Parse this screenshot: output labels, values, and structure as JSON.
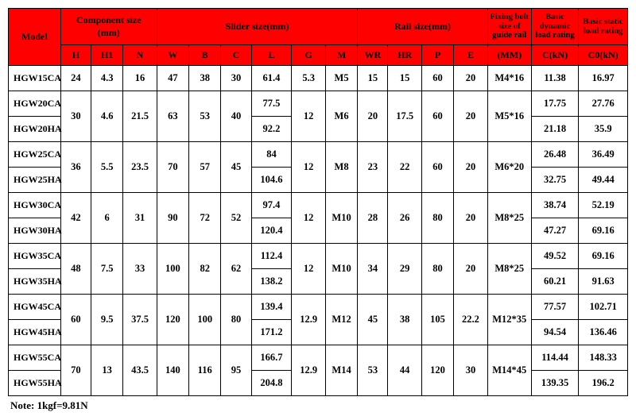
{
  "headers": {
    "model": "Model",
    "component": "Component size\n(mm)",
    "slider": "Slider size(mm)",
    "rail": "Rail size(mm)",
    "bolt": "Fixing bolt size of guide rail",
    "dynamic": "Basic dynamic load rating",
    "static": "Basic static load rating",
    "H": "H",
    "H1": "H1",
    "N": "N",
    "W": "W",
    "B": "B",
    "C": "C",
    "L": "L",
    "G": "G",
    "M": "M",
    "WR": "WR",
    "HR": "HR",
    "P": "P",
    "E": "E",
    "MM": "(MM)",
    "CkN": "C(kN)",
    "C0kN": "C0(kN)"
  },
  "rows": [
    {
      "model": "HGW15CA",
      "H": "24",
      "H1": "4.3",
      "N": "16",
      "W": "47",
      "B": "38",
      "C": "30",
      "L": "61.4",
      "G": "5.3",
      "M": "M5",
      "WR": "15",
      "HR": "15",
      "P": "60",
      "E": "20",
      "MM": "M4*16",
      "CkN": "11.38",
      "C0kN": "16.97"
    },
    {
      "model": "HGW20CA",
      "H": "30",
      "H1": "4.6",
      "N": "21.5",
      "W": "63",
      "B": "53",
      "C": "40",
      "L": "77.5",
      "G": "12",
      "M": "M6",
      "WR": "20",
      "HR": "17.5",
      "P": "60",
      "E": "20",
      "MM": "M5*16",
      "CkN": "17.75",
      "C0kN": "27.76"
    },
    {
      "model": "HGW20HA",
      "L": "92.2",
      "CkN": "21.18",
      "C0kN": "35.9"
    },
    {
      "model": "HGW25CA",
      "H": "36",
      "H1": "5.5",
      "N": "23.5",
      "W": "70",
      "B": "57",
      "C": "45",
      "L": "84",
      "G": "12",
      "M": "M8",
      "WR": "23",
      "HR": "22",
      "P": "60",
      "E": "20",
      "MM": "M6*20",
      "CkN": "26.48",
      "C0kN": "36.49"
    },
    {
      "model": "HGW25HA",
      "L": "104.6",
      "CkN": "32.75",
      "C0kN": "49.44"
    },
    {
      "model": "HGW30CA",
      "H": "42",
      "H1": "6",
      "N": "31",
      "W": "90",
      "B": "72",
      "C": "52",
      "L": "97.4",
      "G": "12",
      "M": "M10",
      "WR": "28",
      "HR": "26",
      "P": "80",
      "E": "20",
      "MM": "M8*25",
      "CkN": "38.74",
      "C0kN": "52.19"
    },
    {
      "model": "HGW30HA",
      "L": "120.4",
      "CkN": "47.27",
      "C0kN": "69.16"
    },
    {
      "model": "HGW35CA",
      "H": "48",
      "H1": "7.5",
      "N": "33",
      "W": "100",
      "B": "82",
      "C": "62",
      "L": "112.4",
      "G": "12",
      "M": "M10",
      "WR": "34",
      "HR": "29",
      "P": "80",
      "E": "20",
      "MM": "M8*25",
      "CkN": "49.52",
      "C0kN": "69.16"
    },
    {
      "model": "HGW35HA",
      "L": "138.2",
      "CkN": "60.21",
      "C0kN": "91.63"
    },
    {
      "model": "HGW45CA",
      "H": "60",
      "H1": "9.5",
      "N": "37.5",
      "W": "120",
      "B": "100",
      "C": "80",
      "L": "139.4",
      "G": "12.9",
      "M": "M12",
      "WR": "45",
      "HR": "38",
      "P": "105",
      "E": "22.2",
      "MM": "M12*35",
      "CkN": "77.57",
      "C0kN": "102.71"
    },
    {
      "model": "HGW45HA",
      "L": "171.2",
      "CkN": "94.54",
      "C0kN": "136.46"
    },
    {
      "model": "HGW55CA",
      "H": "70",
      "H1": "13",
      "N": "43.5",
      "W": "140",
      "B": "116",
      "C": "95",
      "L": "166.7",
      "G": "12.9",
      "M": "M14",
      "WR": "53",
      "HR": "44",
      "P": "120",
      "E": "30",
      "MM": "M14*45",
      "CkN": "114.44",
      "C0kN": "148.33"
    },
    {
      "model": "HGW55HA",
      "L": "204.8",
      "CkN": "139.35",
      "C0kN": "196.2"
    }
  ],
  "note": "Note: 1kgf=9.81N",
  "colors": {
    "header_bg": "#ff0000",
    "border": "#000000",
    "text": "#000000",
    "bg": "#ffffff"
  },
  "col_widths": {
    "model": 62,
    "H": 36,
    "H1": 38,
    "N": 40,
    "W": 38,
    "B": 38,
    "C": 36,
    "L": 48,
    "G": 40,
    "M": 38,
    "WR": 36,
    "HR": 40,
    "P": 38,
    "E": 40,
    "MM": 52,
    "CkN": 56,
    "C0kN": 58
  }
}
